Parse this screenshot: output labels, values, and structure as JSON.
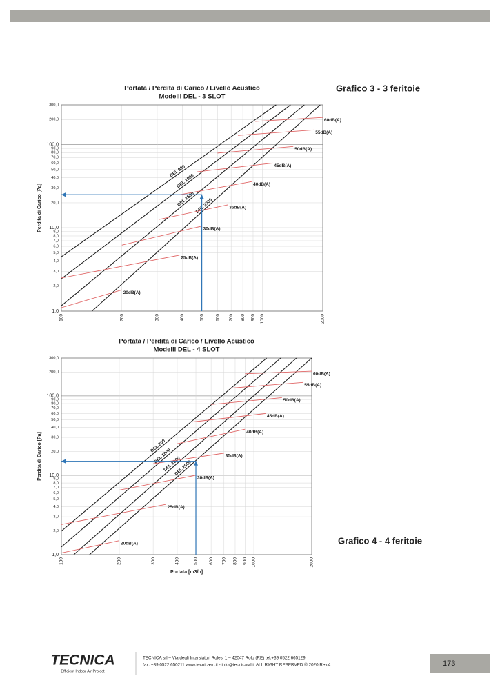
{
  "chart_data": [
    {
      "type": "line",
      "title": "Portata / Perdita di Carico / Livello Acustico",
      "subtitle": "Modelli DEL - 3 SLOT",
      "y_label": "Perdita di Carico [Pa]",
      "xlog": true,
      "ylog": true,
      "grid": true,
      "xlim": [
        100,
        2000
      ],
      "ylim": [
        1,
        300
      ],
      "xticks": [
        100,
        200,
        300,
        400,
        500,
        600,
        700,
        800,
        900,
        1000,
        2000
      ],
      "yticks": [
        {
          "value": 1,
          "label": "1,0"
        },
        {
          "value": 2,
          "label": "2,0"
        },
        {
          "value": 3,
          "label": "3,0"
        },
        {
          "value": 4,
          "label": "4,0"
        },
        {
          "value": 5,
          "label": "5,0"
        },
        {
          "value": 6,
          "label": "6,0"
        },
        {
          "value": 7,
          "label": "7,0"
        },
        {
          "value": 8,
          "label": "8,0"
        },
        {
          "value": 9,
          "label": "9,0"
        },
        {
          "value": 10,
          "label": "10,0"
        },
        {
          "value": 20,
          "label": "20,0"
        },
        {
          "value": 30,
          "label": "30,0"
        },
        {
          "value": 40,
          "label": "40,0"
        },
        {
          "value": 50,
          "label": "50,0"
        },
        {
          "value": 60,
          "label": "60,0"
        },
        {
          "value": 70,
          "label": "70,0"
        },
        {
          "value": 80,
          "label": "80,0"
        },
        {
          "value": 90,
          "label": "90,0"
        },
        {
          "value": 100,
          "label": "100,0"
        },
        {
          "value": 200,
          "label": "200,0"
        },
        {
          "value": 300,
          "label": "300,0"
        }
      ],
      "series": [
        {
          "name": "DEL 800",
          "color": "#222222",
          "x": [
            100,
            1172
          ],
          "values": [
            4.5,
            300
          ]
        },
        {
          "name": "DEL 1000",
          "color": "#222222",
          "x": [
            100,
            1383
          ],
          "values": [
            2.45,
            300
          ]
        },
        {
          "name": "DEL 1500",
          "color": "#222222",
          "x": [
            100,
            1620
          ],
          "values": [
            1.16,
            300
          ]
        },
        {
          "name": "DEL 2000",
          "color": "#222222",
          "x": [
            142,
            1943
          ],
          "values": [
            1,
            300
          ]
        },
        {
          "name": "20dB(A)",
          "color": "#e06666",
          "x": [
            100,
            200
          ],
          "values": [
            1.1,
            1.8
          ]
        },
        {
          "name": "25dB(A)",
          "color": "#e06666",
          "x": [
            100,
            387
          ],
          "values": [
            2.5,
            4.7
          ]
        },
        {
          "name": "30dB(A)",
          "color": "#e06666",
          "x": [
            200,
            500
          ],
          "values": [
            6.2,
            10.5
          ]
        },
        {
          "name": "35dB(A)",
          "color": "#e06666",
          "x": [
            305,
            673
          ],
          "values": [
            12.6,
            18.9
          ]
        },
        {
          "name": "40dB(A)",
          "color": "#e06666",
          "x": [
            387,
            887
          ],
          "values": [
            25,
            36
          ]
        },
        {
          "name": "45dB(A)",
          "color": "#e06666",
          "x": [
            471,
            1127
          ],
          "values": [
            47,
            60
          ]
        },
        {
          "name": "50dB(A)",
          "color": "#e06666",
          "x": [
            598,
            1426
          ],
          "values": [
            79,
            95
          ]
        },
        {
          "name": "55dB(A)",
          "color": "#e06666",
          "x": [
            757,
            1808
          ],
          "values": [
            129,
            150
          ]
        },
        {
          "name": "60dB(A)",
          "color": "#e06666",
          "x": [
            923,
            2000
          ],
          "values": [
            190,
            212
          ]
        }
      ],
      "guide": {
        "color": "#2e75b6",
        "x": [
          100,
          500,
          500
        ],
        "values": [
          25,
          25,
          1
        ]
      }
    },
    {
      "type": "line",
      "title": "Portata / Perdita di Carico / Livello Acustico",
      "subtitle": "Modelli DEL - 4 SLOT",
      "y_label": "Perdita di Carico [Pa]",
      "x_label": "Portata [m3/h]",
      "xlog": true,
      "ylog": true,
      "grid": true,
      "xlim": [
        100,
        2000
      ],
      "ylim": [
        1,
        300
      ],
      "xticks": [
        100,
        200,
        300,
        400,
        500,
        600,
        700,
        800,
        900,
        1000,
        2000
      ],
      "yticks": [
        {
          "value": 1,
          "label": "1,0"
        },
        {
          "value": 2,
          "label": "2,0"
        },
        {
          "value": 3,
          "label": "3,0"
        },
        {
          "value": 4,
          "label": "4,0"
        },
        {
          "value": 5,
          "label": "5,0"
        },
        {
          "value": 6,
          "label": "6,0"
        },
        {
          "value": 7,
          "label": "7,0"
        },
        {
          "value": 8,
          "label": "8,0"
        },
        {
          "value": 9,
          "label": "9,0"
        },
        {
          "value": 10,
          "label": "10,0"
        },
        {
          "value": 20,
          "label": "20,0"
        },
        {
          "value": 30,
          "label": "30,0"
        },
        {
          "value": 40,
          "label": "40,0"
        },
        {
          "value": 50,
          "label": "50,0"
        },
        {
          "value": 60,
          "label": "60,0"
        },
        {
          "value": 70,
          "label": "70,0"
        },
        {
          "value": 80,
          "label": "80,0"
        },
        {
          "value": 90,
          "label": "90,0"
        },
        {
          "value": 100,
          "label": "100,0"
        },
        {
          "value": 200,
          "label": "200,0"
        },
        {
          "value": 300,
          "label": "300,0"
        }
      ],
      "series": [
        {
          "name": "DEL 800",
          "color": "#222222",
          "x": [
            100,
            1167
          ],
          "values": [
            1.98,
            300
          ]
        },
        {
          "name": "DEL 1000",
          "color": "#222222",
          "x": [
            100,
            1380
          ],
          "values": [
            1.25,
            300
          ]
        },
        {
          "name": "DEL 1500",
          "color": "#222222",
          "x": [
            116,
            1666
          ],
          "values": [
            1,
            300
          ]
        },
        {
          "name": "DEL 2000",
          "color": "#222222",
          "x": [
            140,
            2000
          ],
          "values": [
            1,
            300
          ]
        },
        {
          "name": "20dB(A)",
          "color": "#e06666",
          "x": [
            100,
            200
          ],
          "values": [
            1.05,
            1.5
          ]
        },
        {
          "name": "25dB(A)",
          "color": "#e06666",
          "x": [
            100,
            350
          ],
          "values": [
            2.4,
            4.3
          ]
        },
        {
          "name": "30dB(A)",
          "color": "#e06666",
          "x": [
            200,
            500
          ],
          "values": [
            6.5,
            10
          ]
        },
        {
          "name": "35dB(A)",
          "color": "#e06666",
          "x": [
            300,
            700
          ],
          "values": [
            14,
            19
          ]
        },
        {
          "name": "40dB(A)",
          "color": "#e06666",
          "x": [
            400,
            900
          ],
          "values": [
            25,
            38
          ]
        },
        {
          "name": "45dB(A)",
          "color": "#e06666",
          "x": [
            480,
            1150
          ],
          "values": [
            47,
            60
          ]
        },
        {
          "name": "50dB(A)",
          "color": "#e06666",
          "x": [
            600,
            1400
          ],
          "values": [
            78,
            95
          ]
        },
        {
          "name": "55dB(A)",
          "color": "#e06666",
          "x": [
            750,
            1800
          ],
          "values": [
            125,
            148
          ]
        },
        {
          "name": "60dB(A)",
          "color": "#e06666",
          "x": [
            900,
            2000
          ],
          "values": [
            190,
            205
          ]
        }
      ],
      "guide": {
        "color": "#2e75b6",
        "x": [
          100,
          500,
          500
        ],
        "values": [
          15,
          15,
          1
        ]
      }
    }
  ],
  "captions": [
    "Grafico 3 - 3 feritoie",
    "Grafico 4 - 4 feritoie"
  ],
  "footer": {
    "logo": "TECNICA",
    "tagline": "Efficient Indoor Air Project",
    "address": "TECNICA srl – Via degli Intarsiatori Rolesi 1 – 42047 Rolo (RE) tel.+39 0522 665129",
    "contacts": "fax. +39 0522 650211 www.tecnicasrl.it - info@tecnicasrl.it    ALL RIGHT RESERVED © 2020 Rev.4",
    "page": "173"
  }
}
